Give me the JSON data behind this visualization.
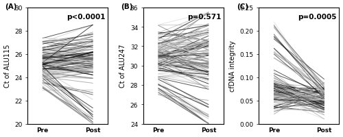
{
  "panel_A": {
    "label": "(A)",
    "ylabel": "Ct of ALU115",
    "pvalue": "p<0.0001",
    "ylim": [
      20,
      30
    ],
    "yticks": [
      20,
      22,
      24,
      26,
      28,
      30
    ],
    "xtick_labels": [
      "Pre",
      "Post"
    ]
  },
  "panel_B": {
    "label": "(B)",
    "ylabel": "Ct of ALU247",
    "pvalue": "p=0.571",
    "ylim": [
      24,
      36
    ],
    "yticks": [
      24,
      26,
      28,
      30,
      32,
      34,
      36
    ],
    "xtick_labels": [
      "Pre",
      "Post"
    ]
  },
  "panel_C": {
    "label": "(C)",
    "ylabel": "cfDNA integrity",
    "pvalue": "p=0.0005",
    "ylim": [
      0,
      0.25
    ],
    "yticks": [
      0,
      0.05,
      0.1,
      0.15,
      0.2,
      0.25
    ],
    "xtick_labels": [
      "Pre",
      "Post"
    ]
  },
  "line_colors_dark": [
    "#000000",
    "#111111",
    "#222222",
    "#333333",
    "#444444"
  ],
  "line_colors_light": [
    "#777777",
    "#888888",
    "#999999",
    "#aaaaaa",
    "#bbbbbb",
    "#cccccc",
    "#dddddd"
  ],
  "line_alpha": 0.75,
  "line_width": 0.7,
  "pvalue_fontsize": 7.5,
  "label_fontsize": 7.5,
  "tick_fontsize": 6.5,
  "ylabel_fontsize": 7
}
